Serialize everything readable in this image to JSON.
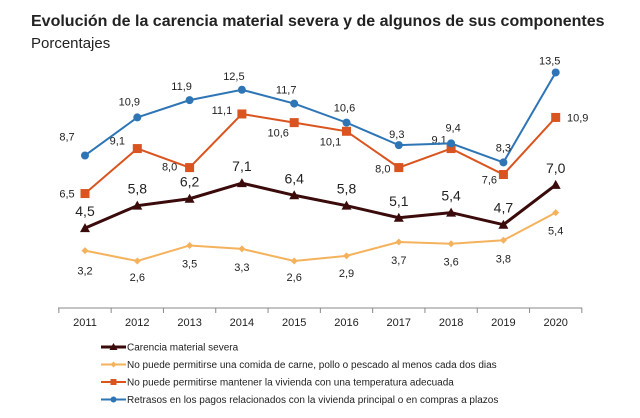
{
  "chart_data": {
    "type": "line",
    "title": "Evolución de la carencia material severa y de algunos de sus componentes",
    "subtitle": "Porcentajes",
    "xlabel": "",
    "ylabel": "",
    "x": [
      "2011",
      "2012",
      "2013",
      "2014",
      "2015",
      "2016",
      "2017",
      "2018",
      "2019",
      "2020"
    ],
    "ylim": [
      0,
      14
    ],
    "grid": false,
    "legend_position": "bottom",
    "series": [
      {
        "name": "Carencia material severa",
        "color": "#3B0A0A",
        "marker": "triangle",
        "values": [
          4.5,
          5.8,
          6.2,
          7.1,
          6.4,
          5.8,
          5.1,
          5.4,
          4.7,
          7.0
        ],
        "labels": [
          "4,5",
          "5,8",
          "6,2",
          "7,1",
          "6,4",
          "5,8",
          "5,1",
          "5,4",
          "4,7",
          "7,0"
        ]
      },
      {
        "name": "No puede permitirse una comida de carne, pollo o pescado al menos cada dos dias",
        "color": "#F5B25C",
        "marker": "diamond",
        "values": [
          3.2,
          2.6,
          3.5,
          3.3,
          2.6,
          2.9,
          3.7,
          3.6,
          3.8,
          5.4
        ],
        "labels": [
          "3,2",
          "2,6",
          "3,5",
          "3,3",
          "2,6",
          "2,9",
          "3,7",
          "3,6",
          "3,8",
          "5,4"
        ]
      },
      {
        "name": "No puede permitirse mantener la vivienda con una temperatura adecuada",
        "color": "#D9541E",
        "marker": "square",
        "values": [
          6.5,
          9.1,
          8.0,
          11.1,
          10.6,
          10.1,
          8.0,
          9.1,
          7.6,
          10.9
        ],
        "labels": [
          "6,5",
          "9,1",
          "8,0",
          "11,1",
          "10,6",
          "10,1",
          "8,0",
          "9,1",
          "7,6",
          "10,9"
        ]
      },
      {
        "name": "Retrasos en los pagos relacionados con la vivienda principal o en compras a plazos",
        "color": "#2E75B6",
        "marker": "circle",
        "values": [
          8.7,
          10.9,
          11.9,
          12.5,
          11.7,
          10.6,
          9.3,
          9.4,
          8.3,
          13.5
        ],
        "labels": [
          "8,7",
          "10,9",
          "11,9",
          "12,5",
          "11,7",
          "10,6",
          "9,3",
          "9,4",
          "8,3",
          "13,5"
        ]
      }
    ]
  }
}
